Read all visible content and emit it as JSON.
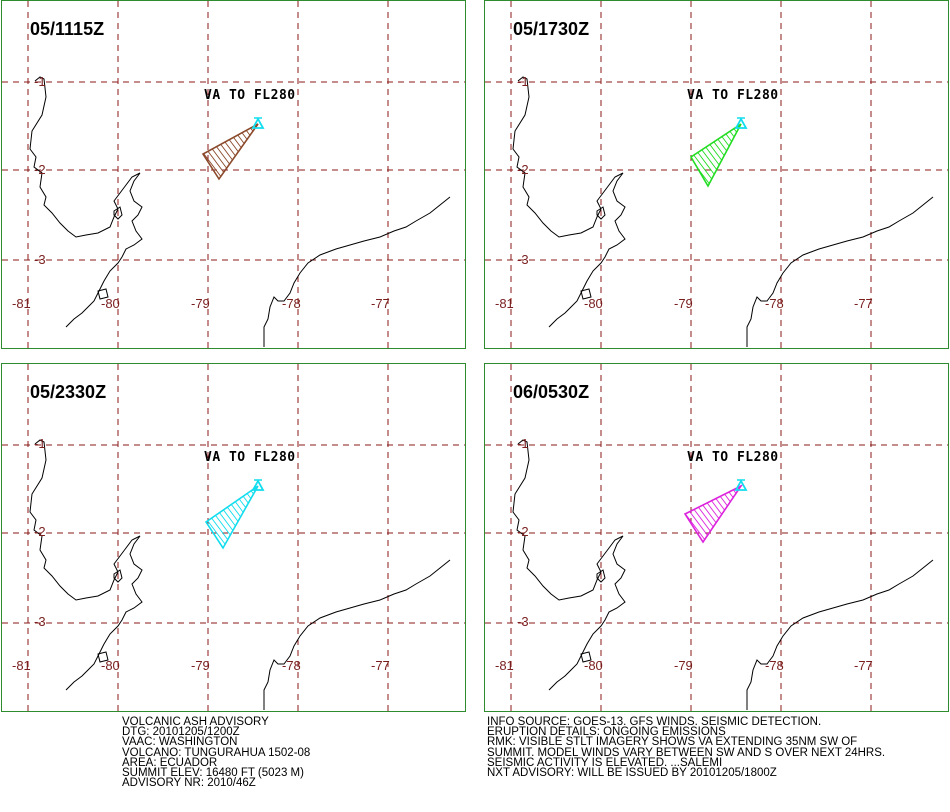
{
  "panels": [
    {
      "time": "05/1115Z",
      "va_label": "VA TO FL280",
      "polygon_color": "#8b4a2b"
    },
    {
      "time": "05/1730Z",
      "va_label": "VA TO FL280",
      "polygon_color": "#22dd22"
    },
    {
      "time": "05/2330Z",
      "va_label": "VA TO FL280",
      "polygon_color": "#11ddee"
    },
    {
      "time": "06/0530Z",
      "va_label": "VA TO FL280",
      "polygon_color": "#dd22dd"
    }
  ],
  "map": {
    "lat_labels": [
      "-1",
      "-2",
      "-3"
    ],
    "lon_labels": [
      "-81",
      "-80",
      "-79",
      "-78",
      "-77"
    ],
    "grid_color": "#8b1a1a",
    "volcano_color": "#11ddee"
  },
  "advisory_left": [
    "VOLCANIC ASH ADVISORY",
    "DTG: 20101205/1200Z",
    "VAAC: WASHINGTON",
    "VOLCANO: TUNGURAHUA 1502-08",
    "AREA: ECUADOR",
    "SUMMIT ELEV: 16480 FT (5023 M)",
    "ADVISORY NR: 2010/46Z"
  ],
  "advisory_right": [
    "INFO SOURCE: GOES-13. GFS WINDS. SEISMIC DETECTION.",
    "ERUPTION DETAILS: ONGOING EMISSIONS",
    "RMK: VISIBLE STLT IMAGERY SHOWS VA EXTENDING 35NM SW OF",
    "SUMMIT. MODEL WINDS VARY BETWEEN SW AND S OVER NEXT 24HRS.",
    "SEISMIC ACTIVITY IS ELEVATED.  ...SALEMI",
    "NXT ADVISORY: WILL BE ISSUED BY 20101205/1800Z"
  ]
}
